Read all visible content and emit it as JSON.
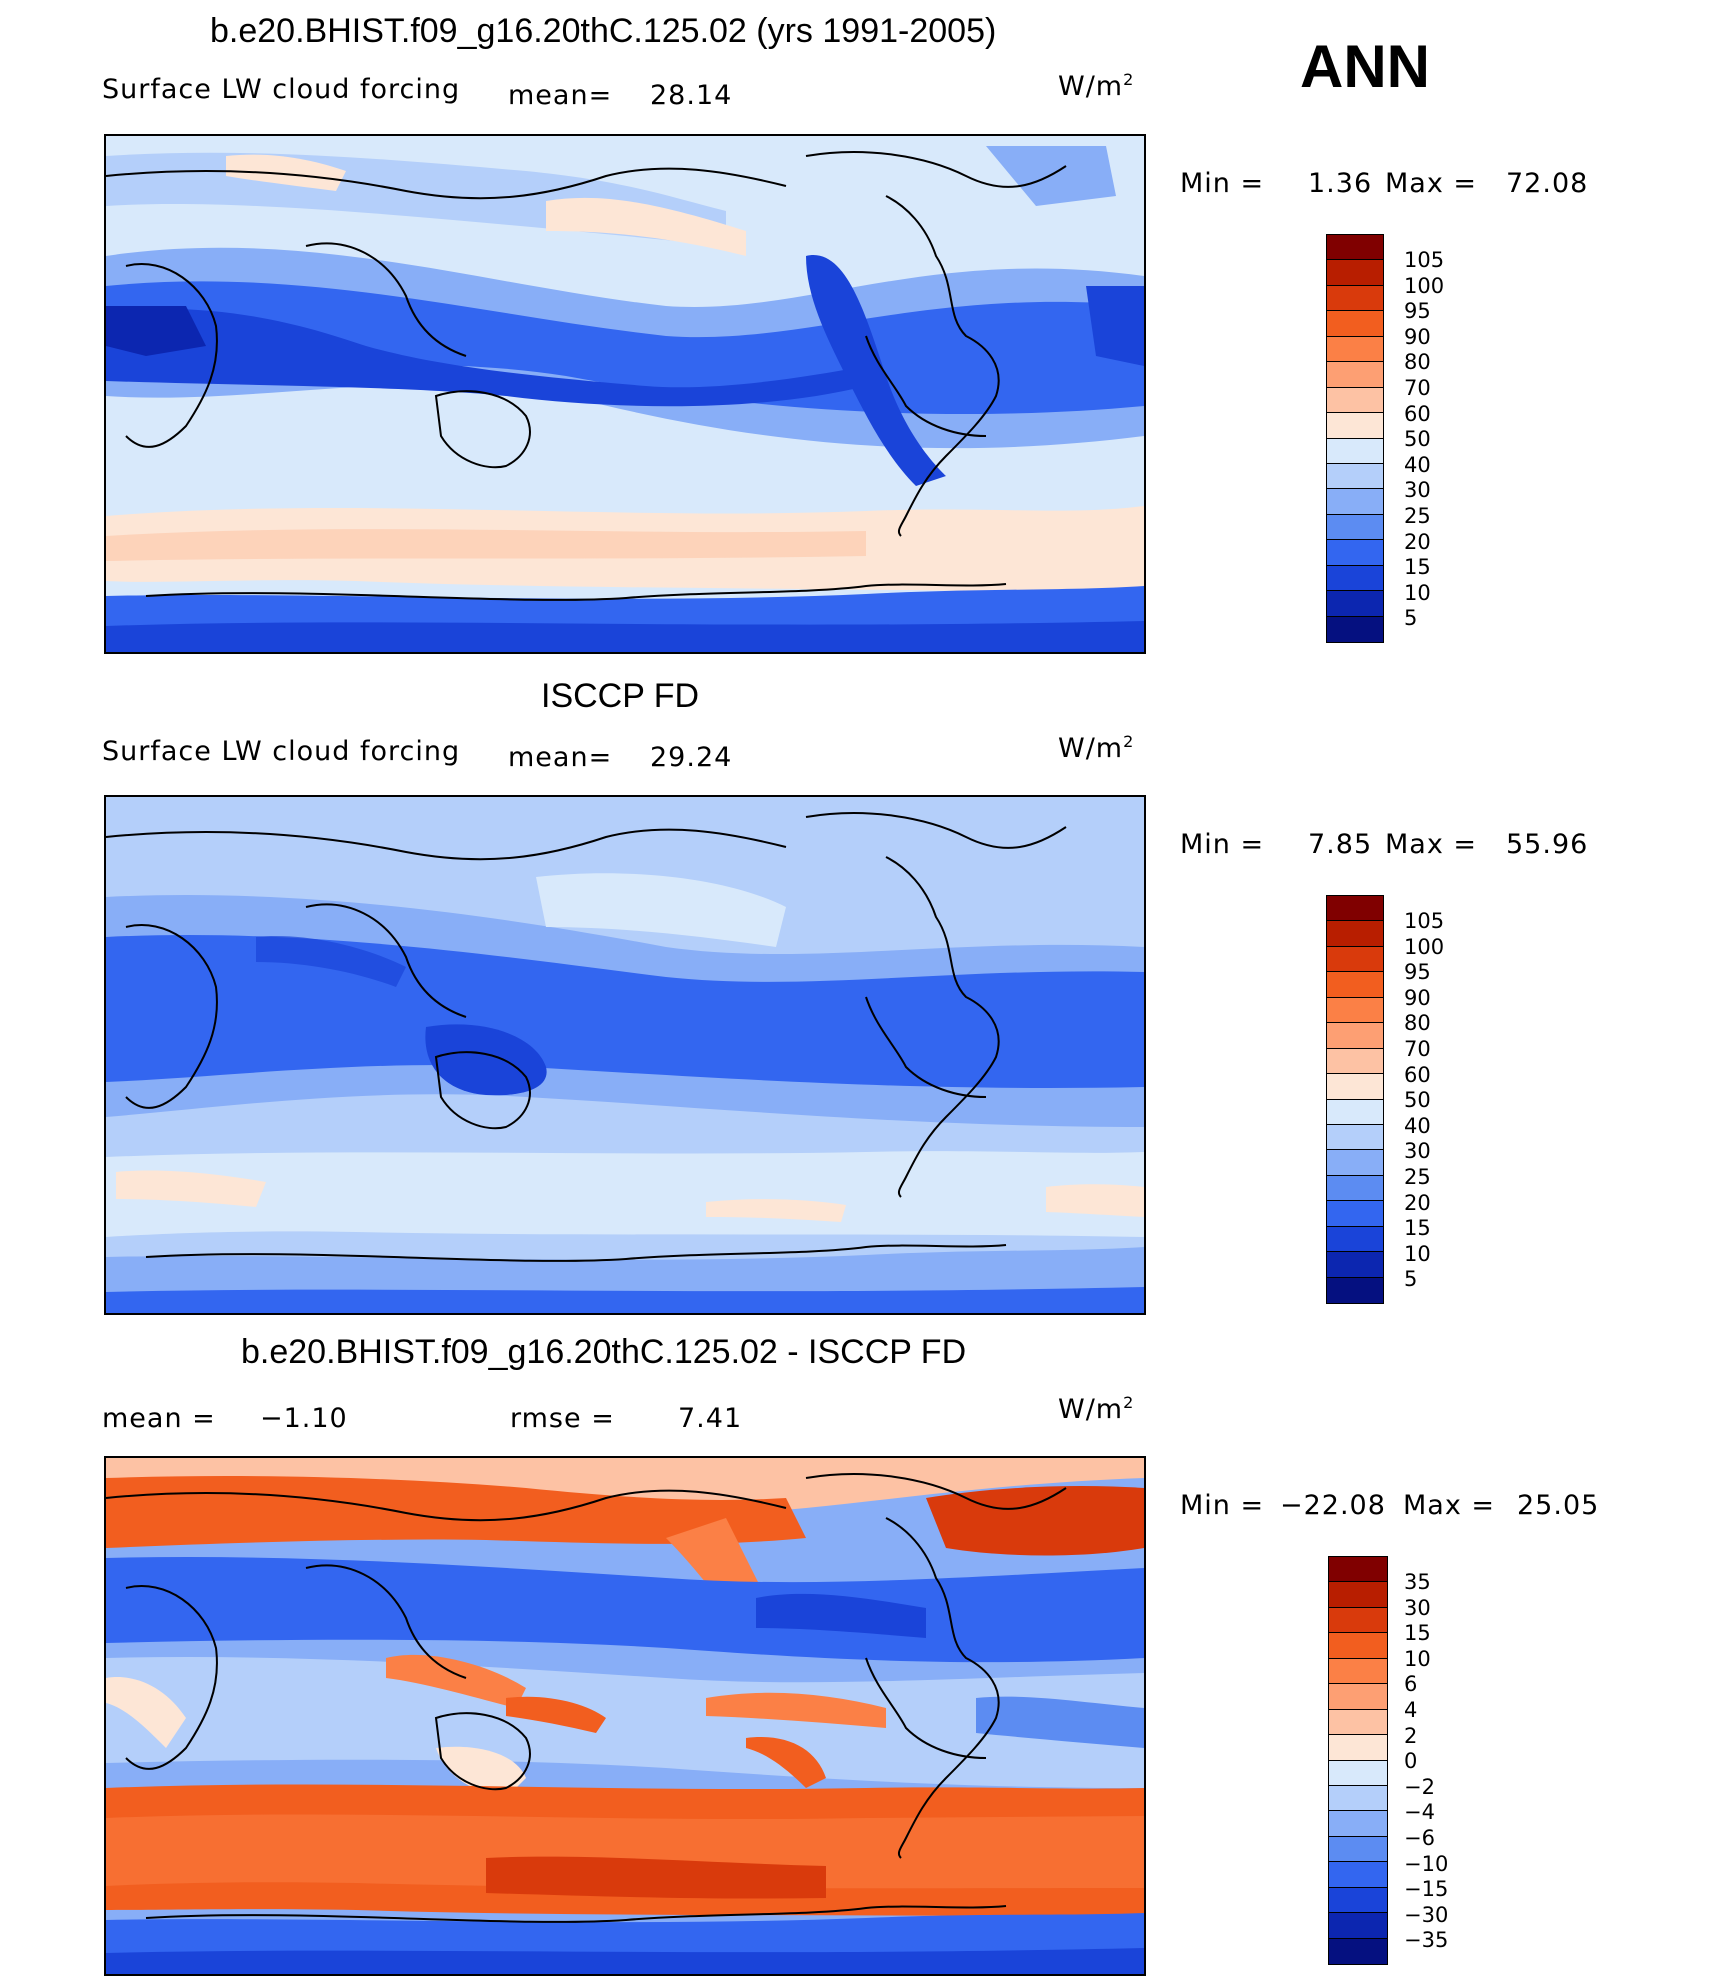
{
  "season": "ANN",
  "units_base": "W/m",
  "units_exp": "2",
  "panels": [
    {
      "title": "b.e20.BHIST.f09_g16.20thC.125.02 (yrs 1991-2005)",
      "subtitle": "Surface LW cloud forcing",
      "mean_label": "mean=",
      "mean_value": "28.14",
      "min_label": "Min =",
      "min_value": "1.36",
      "max_label": "Max =",
      "max_value": "72.08",
      "colorbar": {
        "labels": [
          "105",
          "100",
          "95",
          "90",
          "80",
          "70",
          "60",
          "50",
          "40",
          "30",
          "25",
          "20",
          "15",
          "10",
          "5"
        ],
        "colors": [
          "#800000",
          "#b81e00",
          "#d93a0c",
          "#f25e1f",
          "#fb8046",
          "#fd9f73",
          "#fdc2a4",
          "#fde6d6",
          "#d8e9fb",
          "#b4cffa",
          "#88aef7",
          "#5c8cf2",
          "#3366f0",
          "#1a44d9",
          "#0c26b0",
          "#051080"
        ]
      }
    },
    {
      "title": "ISCCP FD",
      "subtitle": "Surface LW cloud forcing",
      "mean_label": "mean=",
      "mean_value": "29.24",
      "min_label": "Min =",
      "min_value": "7.85",
      "max_label": "Max =",
      "max_value": "55.96",
      "colorbar": {
        "labels": [
          "105",
          "100",
          "95",
          "90",
          "80",
          "70",
          "60",
          "50",
          "40",
          "30",
          "25",
          "20",
          "15",
          "10",
          "5"
        ],
        "colors": [
          "#800000",
          "#b81e00",
          "#d93a0c",
          "#f25e1f",
          "#fb8046",
          "#fd9f73",
          "#fdc2a4",
          "#fde6d6",
          "#d8e9fb",
          "#b4cffa",
          "#88aef7",
          "#5c8cf2",
          "#3366f0",
          "#1a44d9",
          "#0c26b0",
          "#051080"
        ]
      }
    },
    {
      "title": "b.e20.BHIST.f09_g16.20thC.125.02 - ISCCP FD",
      "mean_label": "mean =",
      "mean_value": "−1.10",
      "rmse_label": "rmse =",
      "rmse_value": "7.41",
      "min_label": "Min =",
      "min_value": "−22.08",
      "max_label": "Max =",
      "max_value": "25.05",
      "colorbar": {
        "labels": [
          "35",
          "30",
          "15",
          "10",
          "6",
          "4",
          "2",
          "0",
          "−2",
          "−4",
          "−6",
          "−10",
          "−15",
          "−30",
          "−35"
        ],
        "colors": [
          "#800000",
          "#b81e00",
          "#d93a0c",
          "#f25e1f",
          "#fb8046",
          "#fd9f73",
          "#fdc2a4",
          "#fde6d6",
          "#d8e9fb",
          "#b4cffa",
          "#88aef7",
          "#5c8cf2",
          "#3366f0",
          "#1a44d9",
          "#0c26b0",
          "#051080"
        ]
      }
    }
  ],
  "palette": {
    "ocean_low": "#d8e9fb",
    "cloud_band": "#fde6d6",
    "deep_blue": "#1a44d9",
    "mid_blue": "#3366f0",
    "light_blue": "#88aef7",
    "red": "#d93a0c",
    "orange": "#fb8046",
    "coastline": "#000000"
  }
}
